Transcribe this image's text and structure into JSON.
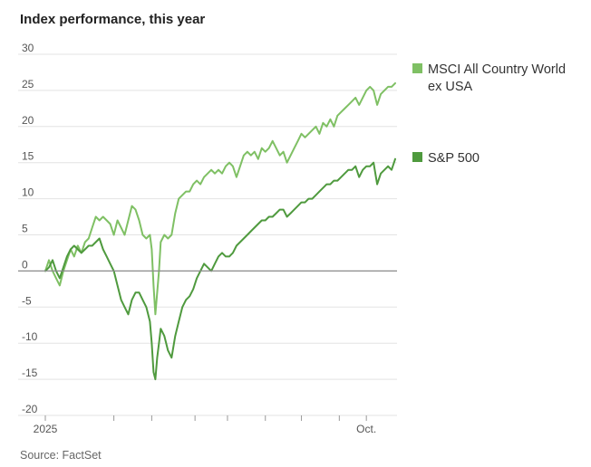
{
  "colors": {
    "msci": "#7fc064",
    "sp500": "#4f9a3e",
    "grid": "#e3e3e3",
    "zero": "#8a8a8a"
  },
  "chart_data": {
    "type": "line",
    "title": "Index performance, this year",
    "source": "Source: FactSet",
    "xlabel": "",
    "ylabel": "",
    "ylim": [
      -20,
      30
    ],
    "yticks": [
      30,
      25,
      20,
      15,
      10,
      5,
      0,
      -5,
      -10,
      -15,
      -20
    ],
    "ytick_labels": [
      "30",
      "25",
      "20",
      "15",
      "10",
      "5",
      "0",
      "-5",
      "-10",
      "-15",
      "-20"
    ],
    "x_domain": [
      0,
      195
    ],
    "x_ticks": [
      {
        "x": 0,
        "label": "2025"
      },
      {
        "x": 38,
        "label": ""
      },
      {
        "x": 59,
        "label": ""
      },
      {
        "x": 83,
        "label": ""
      },
      {
        "x": 101,
        "label": ""
      },
      {
        "x": 122,
        "label": ""
      },
      {
        "x": 142,
        "label": ""
      },
      {
        "x": 163,
        "label": ""
      },
      {
        "x": 178,
        "label": "Oct."
      }
    ],
    "series": [
      {
        "name": "MSCI All Country World ex USA",
        "legend_lines": [
          "MSCI All Country World",
          "ex USA"
        ],
        "points": [
          [
            0,
            0
          ],
          [
            2,
            1.5
          ],
          [
            4,
            0
          ],
          [
            6,
            -1
          ],
          [
            8,
            -2
          ],
          [
            10,
            0
          ],
          [
            12,
            1.5
          ],
          [
            14,
            3
          ],
          [
            16,
            2
          ],
          [
            18,
            3.5
          ],
          [
            20,
            2.5
          ],
          [
            22,
            4
          ],
          [
            24,
            4.5
          ],
          [
            26,
            6
          ],
          [
            28,
            7.5
          ],
          [
            30,
            7
          ],
          [
            32,
            7.5
          ],
          [
            34,
            7
          ],
          [
            36,
            6.5
          ],
          [
            38,
            5
          ],
          [
            40,
            7
          ],
          [
            42,
            6
          ],
          [
            44,
            5
          ],
          [
            46,
            7
          ],
          [
            48,
            9
          ],
          [
            50,
            8.5
          ],
          [
            52,
            7
          ],
          [
            54,
            5
          ],
          [
            56,
            4.5
          ],
          [
            58,
            5
          ],
          [
            59,
            3
          ],
          [
            60,
            -2
          ],
          [
            61,
            -6
          ],
          [
            62,
            -3
          ],
          [
            63,
            0
          ],
          [
            64,
            4
          ],
          [
            66,
            5
          ],
          [
            68,
            4.5
          ],
          [
            70,
            5
          ],
          [
            72,
            8
          ],
          [
            74,
            10
          ],
          [
            76,
            10.5
          ],
          [
            78,
            11
          ],
          [
            80,
            11
          ],
          [
            82,
            12
          ],
          [
            84,
            12.5
          ],
          [
            86,
            12
          ],
          [
            88,
            13
          ],
          [
            90,
            13.5
          ],
          [
            92,
            14
          ],
          [
            94,
            13.5
          ],
          [
            96,
            14
          ],
          [
            98,
            13.5
          ],
          [
            100,
            14.5
          ],
          [
            102,
            15
          ],
          [
            104,
            14.5
          ],
          [
            106,
            13
          ],
          [
            108,
            14.5
          ],
          [
            110,
            16
          ],
          [
            112,
            16.5
          ],
          [
            114,
            16
          ],
          [
            116,
            16.5
          ],
          [
            118,
            15.5
          ],
          [
            120,
            17
          ],
          [
            122,
            16.5
          ],
          [
            124,
            17
          ],
          [
            126,
            18
          ],
          [
            128,
            17
          ],
          [
            130,
            16
          ],
          [
            132,
            16.5
          ],
          [
            134,
            15
          ],
          [
            136,
            16
          ],
          [
            138,
            17
          ],
          [
            140,
            18
          ],
          [
            142,
            19
          ],
          [
            144,
            18.5
          ],
          [
            146,
            19
          ],
          [
            148,
            19.5
          ],
          [
            150,
            20
          ],
          [
            152,
            19
          ],
          [
            154,
            20.5
          ],
          [
            156,
            20
          ],
          [
            158,
            21
          ],
          [
            160,
            20
          ],
          [
            162,
            21.5
          ],
          [
            164,
            22
          ],
          [
            166,
            22.5
          ],
          [
            168,
            23
          ],
          [
            170,
            23.5
          ],
          [
            172,
            24
          ],
          [
            174,
            23
          ],
          [
            176,
            24
          ],
          [
            178,
            25
          ],
          [
            180,
            25.5
          ],
          [
            182,
            25
          ],
          [
            184,
            23
          ],
          [
            186,
            24.5
          ],
          [
            188,
            25
          ],
          [
            190,
            25.5
          ],
          [
            192,
            25.5
          ],
          [
            194,
            26
          ]
        ]
      },
      {
        "name": "S&P 500",
        "legend_lines": [
          "S&P 500"
        ],
        "points": [
          [
            0,
            0
          ],
          [
            2,
            0.5
          ],
          [
            4,
            1.5
          ],
          [
            6,
            0
          ],
          [
            8,
            -1
          ],
          [
            10,
            0.5
          ],
          [
            12,
            2
          ],
          [
            14,
            3
          ],
          [
            16,
            3.5
          ],
          [
            18,
            3
          ],
          [
            20,
            2.5
          ],
          [
            22,
            3
          ],
          [
            24,
            3.5
          ],
          [
            26,
            3.5
          ],
          [
            28,
            4
          ],
          [
            30,
            4.5
          ],
          [
            32,
            3
          ],
          [
            34,
            2
          ],
          [
            36,
            1
          ],
          [
            38,
            0
          ],
          [
            40,
            -2
          ],
          [
            42,
            -4
          ],
          [
            44,
            -5
          ],
          [
            46,
            -6
          ],
          [
            48,
            -4
          ],
          [
            50,
            -3
          ],
          [
            52,
            -3
          ],
          [
            54,
            -4
          ],
          [
            56,
            -5
          ],
          [
            58,
            -7
          ],
          [
            59,
            -10
          ],
          [
            60,
            -14
          ],
          [
            61,
            -15
          ],
          [
            62,
            -12
          ],
          [
            63,
            -10
          ],
          [
            64,
            -8
          ],
          [
            66,
            -9
          ],
          [
            68,
            -11
          ],
          [
            70,
            -12
          ],
          [
            72,
            -9
          ],
          [
            74,
            -7
          ],
          [
            76,
            -5
          ],
          [
            78,
            -4
          ],
          [
            80,
            -3.5
          ],
          [
            82,
            -2.5
          ],
          [
            84,
            -1
          ],
          [
            86,
            0
          ],
          [
            88,
            1
          ],
          [
            90,
            0.5
          ],
          [
            92,
            0
          ],
          [
            94,
            1
          ],
          [
            96,
            2
          ],
          [
            98,
            2.5
          ],
          [
            100,
            2
          ],
          [
            102,
            2
          ],
          [
            104,
            2.5
          ],
          [
            106,
            3.5
          ],
          [
            108,
            4
          ],
          [
            110,
            4.5
          ],
          [
            112,
            5
          ],
          [
            114,
            5.5
          ],
          [
            116,
            6
          ],
          [
            118,
            6.5
          ],
          [
            120,
            7
          ],
          [
            122,
            7
          ],
          [
            124,
            7.5
          ],
          [
            126,
            7.5
          ],
          [
            128,
            8
          ],
          [
            130,
            8.5
          ],
          [
            132,
            8.5
          ],
          [
            134,
            7.5
          ],
          [
            136,
            8
          ],
          [
            138,
            8.5
          ],
          [
            140,
            9
          ],
          [
            142,
            9.5
          ],
          [
            144,
            9.5
          ],
          [
            146,
            10
          ],
          [
            148,
            10
          ],
          [
            150,
            10.5
          ],
          [
            152,
            11
          ],
          [
            154,
            11.5
          ],
          [
            156,
            12
          ],
          [
            158,
            12
          ],
          [
            160,
            12.5
          ],
          [
            162,
            12.5
          ],
          [
            164,
            13
          ],
          [
            166,
            13.5
          ],
          [
            168,
            14
          ],
          [
            170,
            14
          ],
          [
            172,
            14.5
          ],
          [
            174,
            13
          ],
          [
            176,
            14
          ],
          [
            178,
            14.5
          ],
          [
            180,
            14.5
          ],
          [
            182,
            15
          ],
          [
            184,
            12
          ],
          [
            186,
            13.5
          ],
          [
            188,
            14
          ],
          [
            190,
            14.5
          ],
          [
            192,
            14
          ],
          [
            194,
            15.5
          ]
        ]
      }
    ]
  }
}
